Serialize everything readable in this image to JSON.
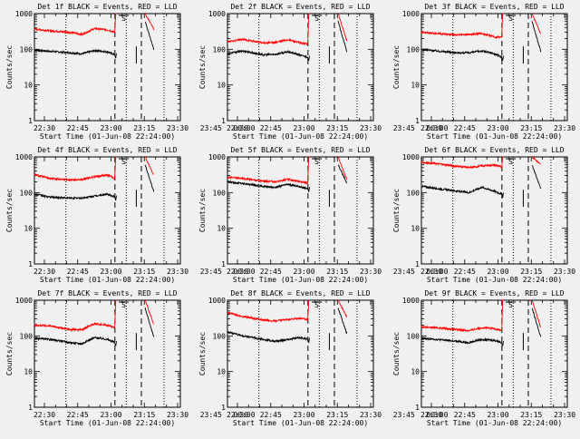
{
  "figure": {
    "xlabel": "Start Time (01-Jun-08 22:24:00)",
    "ylabel": "Counts/sec",
    "x_tick_labels": [
      "22:30",
      "22:45",
      "23:00",
      "23:15",
      "23:30",
      "23:45",
      "00:00"
    ],
    "y_tick_labels": [
      "1",
      "10",
      "100",
      "1000"
    ],
    "saa_marker": "S",
    "colors": {
      "events": "#000000",
      "lld": "#ff0000",
      "background": "#f0f0f0"
    }
  },
  "chart_data": [
    {
      "type": "line",
      "title": "Det 1f BLACK = Events, RED = LLD",
      "xlabel": "Start Time (01-Jun-08 22:24:00)",
      "ylabel": "Counts/sec",
      "xlim": [
        -14,
        44
      ],
      "ylim": [
        1,
        1000
      ],
      "yscale": "log",
      "markers": {
        "dotted": [
          -1.5,
          22.5,
          37.5
        ],
        "dashed": [
          18,
          28.5
        ]
      },
      "x": [
        -14,
        -8,
        0,
        5,
        10,
        15,
        18
      ],
      "series": [
        {
          "name": "Events",
          "values": [
            95,
            88,
            80,
            75,
            92,
            85,
            70
          ]
        },
        {
          "name": "LLD",
          "values": [
            370,
            330,
            300,
            260,
            380,
            350,
            300
          ]
        }
      ]
    },
    {
      "type": "line",
      "title": "Det 2f BLACK = Events, RED = LLD",
      "xlabel": "Start Time (01-Jun-08 22:24:00)",
      "ylabel": "Counts/sec",
      "xlim": [
        -14,
        44
      ],
      "ylim": [
        1,
        1000
      ],
      "yscale": "log",
      "markers": {
        "dotted": [
          -1.5,
          22.5,
          37.5
        ],
        "dashed": [
          18,
          28.5
        ]
      },
      "x": [
        -14,
        -8,
        0,
        5,
        10,
        15,
        18
      ],
      "series": [
        {
          "name": "Events",
          "values": [
            75,
            90,
            70,
            72,
            85,
            68,
            60
          ]
        },
        {
          "name": "LLD",
          "values": [
            160,
            190,
            150,
            155,
            185,
            150,
            140
          ]
        }
      ]
    },
    {
      "type": "line",
      "title": "Det 3f BLACK = Events, RED = LLD",
      "xlabel": "Start Time (01-Jun-08 22:24:00)",
      "ylabel": "Counts/sec",
      "xlim": [
        -14,
        44
      ],
      "ylim": [
        1,
        1000
      ],
      "yscale": "log",
      "markers": {
        "dotted": [
          -1.5,
          22.5,
          37.5
        ],
        "dashed": [
          18,
          28.5
        ]
      },
      "x": [
        -14,
        -8,
        0,
        5,
        10,
        15,
        18
      ],
      "series": [
        {
          "name": "Events",
          "values": [
            100,
            90,
            80,
            80,
            90,
            75,
            60
          ]
        },
        {
          "name": "LLD",
          "values": [
            300,
            280,
            250,
            260,
            280,
            220,
            220
          ]
        }
      ]
    },
    {
      "type": "line",
      "title": "Det 4f BLACK = Events, RED = LLD",
      "xlabel": "Start Time (01-Jun-08 22:24:00)",
      "ylabel": "Counts/sec",
      "xlim": [
        -14,
        44
      ],
      "ylim": [
        1,
        1000
      ],
      "yscale": "log",
      "markers": {
        "dotted": [
          -1.5,
          22.5,
          37.5
        ],
        "dashed": [
          18,
          28.5
        ]
      },
      "x": [
        -14,
        -8,
        0,
        5,
        10,
        15,
        18
      ],
      "series": [
        {
          "name": "Events",
          "values": [
            90,
            75,
            70,
            70,
            80,
            90,
            75
          ]
        },
        {
          "name": "LLD",
          "values": [
            320,
            250,
            230,
            230,
            280,
            310,
            250
          ]
        }
      ]
    },
    {
      "type": "line",
      "title": "Det 5f BLACK = Events, RED = LLD",
      "xlabel": "Start Time (01-Jun-08 22:24:00)",
      "ylabel": "Counts/sec",
      "xlim": [
        -14,
        44
      ],
      "ylim": [
        1,
        1000
      ],
      "yscale": "log",
      "markers": {
        "dotted": [
          -1.5,
          22.5,
          37.5
        ],
        "dashed": [
          18,
          28.5
        ]
      },
      "x": [
        -14,
        -8,
        0,
        5,
        10,
        15,
        18
      ],
      "series": [
        {
          "name": "Events",
          "values": [
            200,
            180,
            150,
            140,
            170,
            145,
            130
          ]
        },
        {
          "name": "LLD",
          "values": [
            270,
            250,
            210,
            200,
            235,
            200,
            190
          ]
        }
      ]
    },
    {
      "type": "line",
      "title": "Det 6f BLACK = Events, RED = LLD",
      "xlabel": "Start Time (01-Jun-08 22:24:00)",
      "ylabel": "Counts/sec",
      "xlim": [
        -14,
        44
      ],
      "ylim": [
        1,
        1000
      ],
      "yscale": "log",
      "markers": {
        "dotted": [
          -1.5,
          22.5,
          37.5
        ],
        "dashed": [
          18,
          28.5
        ]
      },
      "x": [
        -14,
        -8,
        0,
        5,
        10,
        15,
        18
      ],
      "series": [
        {
          "name": "Events",
          "values": [
            150,
            130,
            110,
            100,
            140,
            110,
            90
          ]
        },
        {
          "name": "LLD",
          "values": [
            700,
            650,
            550,
            500,
            560,
            600,
            520
          ]
        }
      ]
    },
    {
      "type": "line",
      "title": "Det 7f BLACK = Events, RED = LLD",
      "xlabel": "Start Time (01-Jun-08 22:24:00)",
      "ylabel": "Counts/sec",
      "xlim": [
        -14,
        44
      ],
      "ylim": [
        1,
        1000
      ],
      "yscale": "log",
      "markers": {
        "dotted": [
          -1.5,
          22.5,
          37.5
        ],
        "dashed": [
          18,
          28.5
        ]
      },
      "x": [
        -14,
        -8,
        0,
        5,
        10,
        15,
        18
      ],
      "series": [
        {
          "name": "Events",
          "values": [
            85,
            80,
            65,
            60,
            90,
            80,
            65
          ]
        },
        {
          "name": "LLD",
          "values": [
            200,
            190,
            150,
            150,
            220,
            200,
            170
          ]
        }
      ]
    },
    {
      "type": "line",
      "title": "Det 8f BLACK = Events, RED = LLD",
      "xlabel": "Start Time (01-Jun-08 22:24:00)",
      "ylabel": "Counts/sec",
      "xlim": [
        -14,
        44
      ],
      "ylim": [
        1,
        1000
      ],
      "yscale": "log",
      "markers": {
        "dotted": [
          -1.5,
          22.5,
          37.5
        ],
        "dashed": [
          18,
          28.5
        ]
      },
      "x": [
        -14,
        -8,
        0,
        5,
        10,
        15,
        18
      ],
      "series": [
        {
          "name": "Events",
          "values": [
            130,
            100,
            80,
            70,
            80,
            90,
            80
          ]
        },
        {
          "name": "LLD",
          "values": [
            450,
            350,
            280,
            260,
            290,
            310,
            280
          ]
        }
      ]
    },
    {
      "type": "line",
      "title": "Det 9f BLACK = Events, RED = LLD",
      "xlabel": "Start Time (01-Jun-08 22:24:00)",
      "ylabel": "Counts/sec",
      "xlim": [
        -14,
        44
      ],
      "ylim": [
        1,
        1000
      ],
      "yscale": "log",
      "markers": {
        "dotted": [
          -1.5,
          22.5,
          37.5
        ],
        "dashed": [
          18,
          28.5
        ]
      },
      "x": [
        -14,
        -8,
        0,
        5,
        10,
        15,
        18
      ],
      "series": [
        {
          "name": "Events",
          "values": [
            85,
            80,
            70,
            65,
            80,
            75,
            65
          ]
        },
        {
          "name": "LLD",
          "values": [
            180,
            170,
            150,
            140,
            170,
            160,
            140
          ]
        }
      ]
    }
  ]
}
